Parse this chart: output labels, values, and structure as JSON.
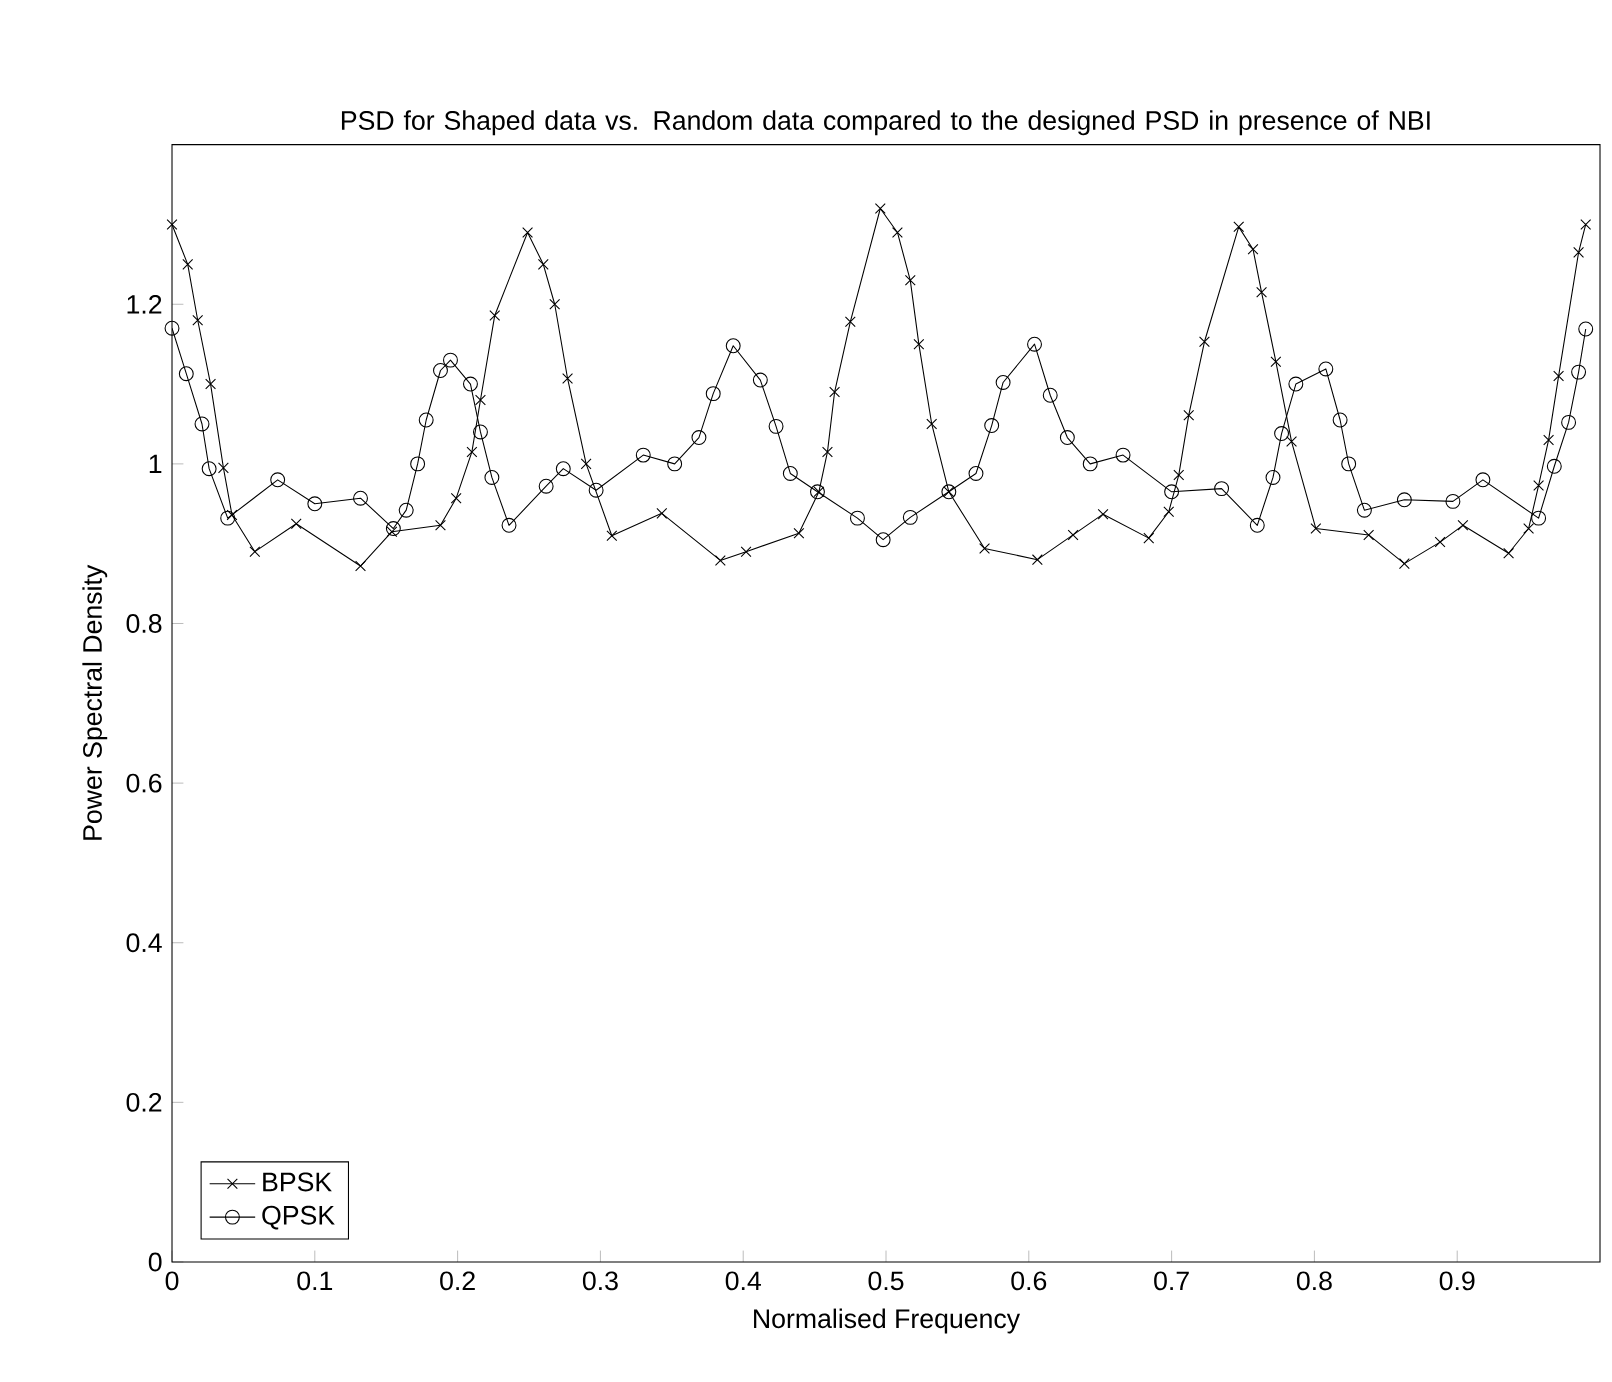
{
  "chart_data": {
    "type": "line",
    "title": "PSD for Shaped data vs. Random data compared to the designed PSD in presence of NBI",
    "xlabel": "Normalised Frequency",
    "ylabel": "Power Spectral Density",
    "xlim": [
      0,
      1
    ],
    "ylim": [
      0,
      1.4
    ],
    "xticks": [
      0,
      0.1,
      0.2,
      0.3,
      0.4,
      0.5,
      0.6,
      0.7,
      0.8,
      0.9
    ],
    "yticks": [
      0,
      0.2,
      0.4,
      0.6,
      0.8,
      1,
      1.2
    ],
    "grid": false,
    "legend": "bottom left",
    "line_style": "solid",
    "series": [
      {
        "name": "BPSK",
        "color": "#000000",
        "marker": "cross",
        "x": [
          0,
          0.011,
          0.018,
          0.027,
          0.036,
          0.042,
          0.058,
          0.087,
          0.132,
          0.154,
          0.188,
          0.199,
          0.21,
          0.216,
          0.226,
          0.249,
          0.26,
          0.268,
          0.277,
          0.29,
          0.308,
          0.343,
          0.384,
          0.402,
          0.439,
          0.453,
          0.459,
          0.464,
          0.475,
          0.496,
          0.508,
          0.517,
          0.523,
          0.532,
          0.544,
          0.569,
          0.606,
          0.631,
          0.652,
          0.684,
          0.698,
          0.705,
          0.712,
          0.723,
          0.747,
          0.757,
          0.763,
          0.773,
          0.784,
          0.801,
          0.838,
          0.863,
          0.888,
          0.904,
          0.936,
          0.95,
          0.957,
          0.964,
          0.971,
          0.985,
          0.99
        ],
        "values": [
          1.3,
          1.25,
          1.18,
          1.1,
          0.995,
          0.936,
          0.89,
          0.925,
          0.872,
          0.915,
          0.923,
          0.957,
          1.015,
          1.08,
          1.186,
          1.29,
          1.25,
          1.2,
          1.107,
          1.0,
          0.91,
          0.938,
          0.879,
          0.89,
          0.913,
          0.965,
          1.015,
          1.09,
          1.178,
          1.32,
          1.29,
          1.23,
          1.15,
          1.05,
          0.965,
          0.894,
          0.88,
          0.911,
          0.937,
          0.907,
          0.94,
          0.986,
          1.061,
          1.153,
          1.297,
          1.269,
          1.215,
          1.128,
          1.028,
          0.919,
          0.911,
          0.875,
          0.902,
          0.923,
          0.888,
          0.919,
          0.973,
          1.03,
          1.11,
          1.265,
          1.3
        ]
      },
      {
        "name": "QPSK",
        "color": "#000000",
        "marker": "circle",
        "x": [
          0,
          0.01,
          0.021,
          0.026,
          0.039,
          0.074,
          0.1,
          0.132,
          0.155,
          0.164,
          0.172,
          0.178,
          0.188,
          0.195,
          0.209,
          0.216,
          0.224,
          0.236,
          0.262,
          0.274,
          0.297,
          0.33,
          0.352,
          0.369,
          0.379,
          0.393,
          0.412,
          0.423,
          0.433,
          0.452,
          0.48,
          0.498,
          0.517,
          0.544,
          0.563,
          0.574,
          0.582,
          0.604,
          0.615,
          0.627,
          0.643,
          0.666,
          0.7,
          0.735,
          0.76,
          0.771,
          0.777,
          0.787,
          0.808,
          0.818,
          0.824,
          0.835,
          0.863,
          0.897,
          0.918,
          0.957,
          0.968,
          0.978,
          0.985,
          0.99
        ],
        "values": [
          1.17,
          1.113,
          1.05,
          0.994,
          0.932,
          0.98,
          0.95,
          0.957,
          0.919,
          0.942,
          1.0,
          1.055,
          1.117,
          1.13,
          1.1,
          1.04,
          0.983,
          0.923,
          0.972,
          0.994,
          0.967,
          1.011,
          1.0,
          1.033,
          1.088,
          1.148,
          1.105,
          1.047,
          0.988,
          0.965,
          0.932,
          0.905,
          0.933,
          0.965,
          0.988,
          1.048,
          1.102,
          1.15,
          1.086,
          1.033,
          1.0,
          1.011,
          0.965,
          0.969,
          0.923,
          0.983,
          1.038,
          1.1,
          1.119,
          1.055,
          1.0,
          0.942,
          0.955,
          0.953,
          0.98,
          0.932,
          0.997,
          1.052,
          1.115,
          1.169
        ]
      }
    ]
  }
}
